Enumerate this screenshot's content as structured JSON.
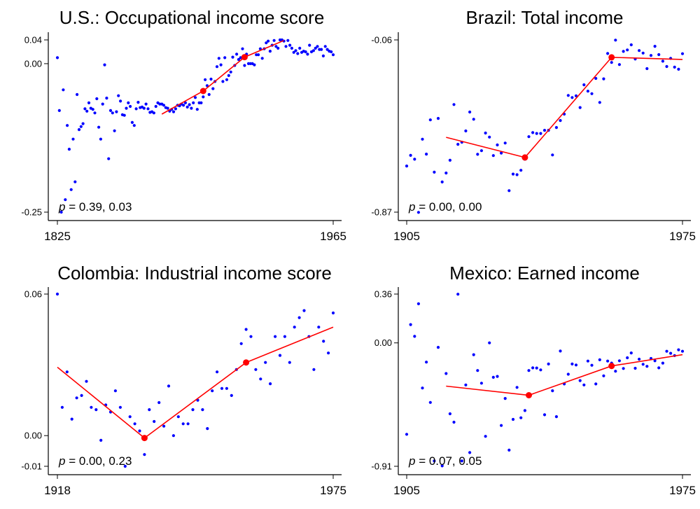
{
  "colors": {
    "points": "#0000ff",
    "fit": "#ff0000",
    "axis": "#000000"
  },
  "chart_data": [
    {
      "type": "scatter",
      "title": "U.S.: Occupational income score",
      "xlabel": "",
      "ylabel": "",
      "xlim": [
        1825,
        1965
      ],
      "ylim": [
        -0.25,
        0.04
      ],
      "xticks": [
        {
          "value": 1825,
          "label": "1825"
        },
        {
          "value": 1965,
          "label": "1965"
        }
      ],
      "yticks": [
        {
          "value": 0.04,
          "label": "0.04"
        },
        {
          "value": 0.0,
          "label": "0.00"
        },
        {
          "value": -0.25,
          "label": "-0.25"
        }
      ],
      "annotation": {
        "prefix": "p",
        "text": " = 0.39, 0.03"
      },
      "series": {
        "name": "points",
        "x": [
          1825,
          1826,
          1827,
          1828,
          1829,
          1830,
          1831,
          1832,
          1833,
          1834,
          1835,
          1836,
          1837,
          1838,
          1839,
          1840,
          1841,
          1842,
          1843,
          1844,
          1845,
          1846,
          1847,
          1848,
          1849,
          1850,
          1851,
          1852,
          1853,
          1854,
          1855,
          1856,
          1857,
          1858,
          1859,
          1860,
          1861,
          1862,
          1863,
          1864,
          1865,
          1866,
          1867,
          1868,
          1869,
          1870,
          1871,
          1872,
          1873,
          1874,
          1875,
          1876,
          1877,
          1878,
          1879,
          1880,
          1881,
          1882,
          1883,
          1884,
          1885,
          1886,
          1887,
          1888,
          1889,
          1890,
          1891,
          1892,
          1893,
          1894,
          1895,
          1896,
          1897,
          1898,
          1899,
          1900,
          1901,
          1902,
          1903,
          1904,
          1905,
          1906,
          1907,
          1908,
          1909,
          1910,
          1911,
          1912,
          1913,
          1914,
          1915,
          1916,
          1917,
          1918,
          1919,
          1920,
          1921,
          1922,
          1923,
          1924,
          1925,
          1926,
          1927,
          1928,
          1929,
          1930,
          1931,
          1932,
          1933,
          1934,
          1935,
          1936,
          1937,
          1938,
          1939,
          1940,
          1941,
          1942,
          1943,
          1944,
          1945,
          1946,
          1947,
          1948,
          1949,
          1950,
          1951,
          1952,
          1953,
          1954,
          1955,
          1956,
          1957,
          1958,
          1959,
          1960,
          1961,
          1962,
          1963,
          1964,
          1965
        ],
        "y": [
          0.01,
          -0.079,
          -0.25,
          -0.044,
          -0.229,
          -0.104,
          -0.144,
          -0.212,
          -0.127,
          -0.199,
          -0.052,
          -0.111,
          -0.106,
          -0.101,
          -0.076,
          -0.08,
          -0.066,
          -0.075,
          -0.077,
          -0.083,
          -0.059,
          -0.107,
          -0.127,
          -0.068,
          -0.002,
          -0.058,
          -0.16,
          -0.079,
          -0.083,
          -0.113,
          -0.081,
          -0.054,
          -0.063,
          -0.086,
          -0.087,
          -0.075,
          -0.066,
          -0.072,
          -0.099,
          -0.104,
          -0.076,
          -0.065,
          -0.074,
          -0.073,
          -0.075,
          -0.068,
          -0.076,
          -0.082,
          -0.081,
          -0.083,
          -0.072,
          -0.066,
          -0.068,
          -0.068,
          -0.07,
          -0.074,
          -0.075,
          -0.08,
          -0.077,
          -0.081,
          -0.076,
          -0.07,
          -0.071,
          -0.068,
          -0.07,
          -0.066,
          -0.073,
          -0.069,
          -0.075,
          -0.066,
          -0.057,
          -0.077,
          -0.066,
          -0.066,
          -0.056,
          -0.027,
          -0.037,
          -0.052,
          -0.026,
          -0.042,
          -0.03,
          -0.005,
          0.009,
          -0.002,
          -0.03,
          0.01,
          -0.027,
          -0.02,
          -0.014,
          0.011,
          -0.003,
          0.016,
          0.007,
          0.01,
          0.025,
          -0.003,
          0.016,
          0.0,
          0.0,
          0.0,
          -0.002,
          0.015,
          0.015,
          0.025,
          0.009,
          0.025,
          0.035,
          0.038,
          0.021,
          0.031,
          0.039,
          0.029,
          0.026,
          0.04,
          0.04,
          0.038,
          0.029,
          0.039,
          0.031,
          0.026,
          0.019,
          0.022,
          0.017,
          0.026,
          0.019,
          0.021,
          0.02,
          0.016,
          0.031,
          0.02,
          0.022,
          0.026,
          0.029,
          0.024,
          0.024,
          0.013,
          0.029,
          0.024,
          0.021,
          0.02,
          0.015
        ]
      },
      "fit": {
        "x": [
          1878,
          1899,
          1920,
          1940
        ],
        "y": [
          -0.085,
          -0.046,
          0.011,
          0.039
        ]
      },
      "breakpoints": {
        "x": [
          1899,
          1920
        ],
        "y": [
          -0.046,
          0.011
        ]
      }
    },
    {
      "type": "scatter",
      "title": "Brazil: Total income",
      "xlabel": "",
      "ylabel": "",
      "xlim": [
        1905,
        1975
      ],
      "ylim": [
        -0.87,
        -0.06
      ],
      "xticks": [
        {
          "value": 1905,
          "label": "1905"
        },
        {
          "value": 1975,
          "label": "1975"
        }
      ],
      "yticks": [
        {
          "value": -0.06,
          "label": "-0.06"
        },
        {
          "value": -0.87,
          "label": "-0.87"
        }
      ],
      "annotation": {
        "prefix": "p",
        "text": " = 0.00, 0.00"
      },
      "series": {
        "name": "points",
        "x": [
          1905,
          1906,
          1907,
          1908,
          1909,
          1910,
          1911,
          1912,
          1913,
          1914,
          1915,
          1916,
          1917,
          1918,
          1919,
          1920,
          1921,
          1922,
          1923,
          1924,
          1925,
          1926,
          1927,
          1928,
          1929,
          1930,
          1931,
          1932,
          1933,
          1934,
          1935,
          1936,
          1937,
          1938,
          1939,
          1940,
          1941,
          1942,
          1943,
          1944,
          1945,
          1946,
          1947,
          1948,
          1949,
          1950,
          1951,
          1952,
          1953,
          1954,
          1955,
          1956,
          1957,
          1958,
          1959,
          1960,
          1961,
          1962,
          1963,
          1964,
          1965,
          1966,
          1967,
          1968,
          1969,
          1970,
          1971,
          1972,
          1973,
          1974,
          1975
        ],
        "y": [
          -0.653,
          -0.603,
          -0.621,
          -0.871,
          -0.527,
          -0.597,
          -0.436,
          -0.682,
          -0.429,
          -0.728,
          -0.686,
          -0.626,
          -0.364,
          -0.551,
          -0.541,
          -0.488,
          -0.399,
          -0.433,
          -0.598,
          -0.581,
          -0.498,
          -0.517,
          -0.604,
          -0.554,
          -0.592,
          -0.545,
          -0.769,
          -0.691,
          -0.694,
          -0.673,
          -0.621,
          -0.515,
          -0.496,
          -0.5,
          -0.5,
          -0.485,
          -0.485,
          -0.601,
          -0.472,
          -0.439,
          -0.409,
          -0.321,
          -0.331,
          -0.323,
          -0.378,
          -0.271,
          -0.301,
          -0.313,
          -0.241,
          -0.354,
          -0.243,
          -0.124,
          -0.166,
          -0.061,
          -0.176,
          -0.114,
          -0.107,
          -0.083,
          -0.15,
          -0.11,
          -0.122,
          -0.195,
          -0.133,
          -0.09,
          -0.129,
          -0.16,
          -0.185,
          -0.147,
          -0.188,
          -0.198,
          -0.125
        ]
      },
      "fit": {
        "x": [
          1915,
          1935,
          1957,
          1975
        ],
        "y": [
          -0.518,
          -0.613,
          -0.142,
          -0.152
        ]
      },
      "breakpoints": {
        "x": [
          1935,
          1957
        ],
        "y": [
          -0.613,
          -0.142
        ]
      }
    },
    {
      "type": "scatter",
      "title": "Colombia: Industrial income score",
      "xlabel": "",
      "ylabel": "",
      "xlim": [
        1918,
        1975
      ],
      "ylim": [
        -0.013,
        0.06
      ],
      "xticks": [
        {
          "value": 1918,
          "label": "1918"
        },
        {
          "value": 1975,
          "label": "1975"
        }
      ],
      "yticks": [
        {
          "value": 0.06,
          "label": "0.06"
        },
        {
          "value": 0.0,
          "label": "0.00"
        },
        {
          "value": -0.013,
          "label": "-0.01"
        }
      ],
      "annotation": {
        "prefix": "p",
        "text": " = 0.00, 0.23"
      },
      "series": {
        "name": "points",
        "x": [
          1918,
          1919,
          1920,
          1921,
          1922,
          1923,
          1924,
          1925,
          1926,
          1927,
          1928,
          1929,
          1930,
          1931,
          1932,
          1933,
          1934,
          1935,
          1936,
          1937,
          1938,
          1939,
          1940,
          1941,
          1942,
          1943,
          1944,
          1945,
          1946,
          1947,
          1948,
          1949,
          1950,
          1951,
          1952,
          1953,
          1954,
          1955,
          1956,
          1957,
          1958,
          1959,
          1960,
          1961,
          1962,
          1963,
          1964,
          1965,
          1966,
          1967,
          1968,
          1969,
          1970,
          1971,
          1972,
          1973,
          1974,
          1975
        ],
        "y": [
          0.06,
          0.012,
          0.027,
          0.007,
          0.016,
          0.017,
          0.023,
          0.012,
          0.011,
          -0.002,
          0.013,
          0.01,
          0.019,
          0.012,
          -0.013,
          0.008,
          0.005,
          0.002,
          -0.008,
          0.011,
          0.006,
          0.014,
          0.004,
          0.021,
          0.0,
          0.008,
          0.005,
          0.005,
          0.011,
          0.015,
          0.011,
          0.003,
          0.019,
          0.027,
          0.02,
          0.02,
          0.017,
          0.028,
          0.039,
          0.045,
          0.042,
          0.028,
          0.024,
          0.031,
          0.022,
          0.042,
          0.034,
          0.042,
          0.031,
          0.046,
          0.05,
          0.053,
          0.042,
          0.028,
          0.046,
          0.04,
          0.035,
          0.052
        ]
      },
      "fit": {
        "x": [
          1918,
          1936,
          1957,
          1975
        ],
        "y": [
          0.029,
          -0.001,
          0.031,
          0.046
        ]
      },
      "breakpoints": {
        "x": [
          1936,
          1957
        ],
        "y": [
          -0.001,
          0.031
        ]
      }
    },
    {
      "type": "scatter",
      "title": "Mexico: Earned income",
      "xlabel": "",
      "ylabel": "",
      "xlim": [
        1905,
        1975
      ],
      "ylim": [
        -0.91,
        0.36
      ],
      "xticks": [
        {
          "value": 1905,
          "label": "1905"
        },
        {
          "value": 1975,
          "label": "1975"
        }
      ],
      "yticks": [
        {
          "value": 0.36,
          "label": "0.36"
        },
        {
          "value": 0.0,
          "label": "0.00"
        },
        {
          "value": -0.91,
          "label": "-0.91"
        }
      ],
      "annotation": {
        "prefix": "p",
        "text": " = 0.07, 0.05"
      },
      "series": {
        "name": "points",
        "x": [
          1905,
          1906,
          1907,
          1908,
          1909,
          1910,
          1911,
          1912,
          1913,
          1914,
          1915,
          1916,
          1917,
          1918,
          1919,
          1920,
          1921,
          1922,
          1923,
          1924,
          1925,
          1926,
          1927,
          1928,
          1929,
          1930,
          1931,
          1932,
          1933,
          1934,
          1935,
          1936,
          1937,
          1938,
          1939,
          1940,
          1941,
          1942,
          1943,
          1944,
          1945,
          1946,
          1947,
          1948,
          1949,
          1950,
          1951,
          1952,
          1953,
          1954,
          1955,
          1956,
          1957,
          1958,
          1959,
          1960,
          1961,
          1962,
          1963,
          1964,
          1965,
          1966,
          1967,
          1968,
          1969,
          1970,
          1971,
          1972,
          1973,
          1974,
          1975
        ],
        "y": [
          -0.674,
          0.135,
          0.048,
          0.288,
          -0.333,
          -0.142,
          -0.439,
          -0.871,
          -0.033,
          -0.907,
          -0.226,
          -0.523,
          -0.585,
          0.359,
          -0.871,
          -0.31,
          -0.809,
          -0.087,
          -0.204,
          -0.297,
          -0.689,
          0.0,
          -0.254,
          -0.247,
          -0.609,
          -0.41,
          -0.791,
          -0.564,
          -0.328,
          -0.552,
          -0.499,
          -0.204,
          -0.184,
          -0.185,
          -0.199,
          -0.53,
          -0.156,
          -0.353,
          -0.544,
          -0.06,
          -0.303,
          -0.231,
          -0.156,
          -0.163,
          -0.278,
          -0.31,
          -0.134,
          -0.165,
          -0.303,
          -0.125,
          -0.243,
          -0.134,
          -0.149,
          -0.209,
          -0.132,
          -0.189,
          -0.11,
          -0.074,
          -0.187,
          -0.12,
          -0.158,
          -0.173,
          -0.115,
          -0.132,
          -0.184,
          -0.149,
          -0.062,
          -0.077,
          -0.094,
          -0.051,
          -0.062
        ]
      },
      "fit": {
        "x": [
          1915,
          1936,
          1957,
          1975
        ],
        "y": [
          -0.319,
          -0.386,
          -0.17,
          -0.087
        ]
      },
      "breakpoints": {
        "x": [
          1936,
          1957
        ],
        "y": [
          -0.386,
          -0.17
        ]
      }
    }
  ]
}
